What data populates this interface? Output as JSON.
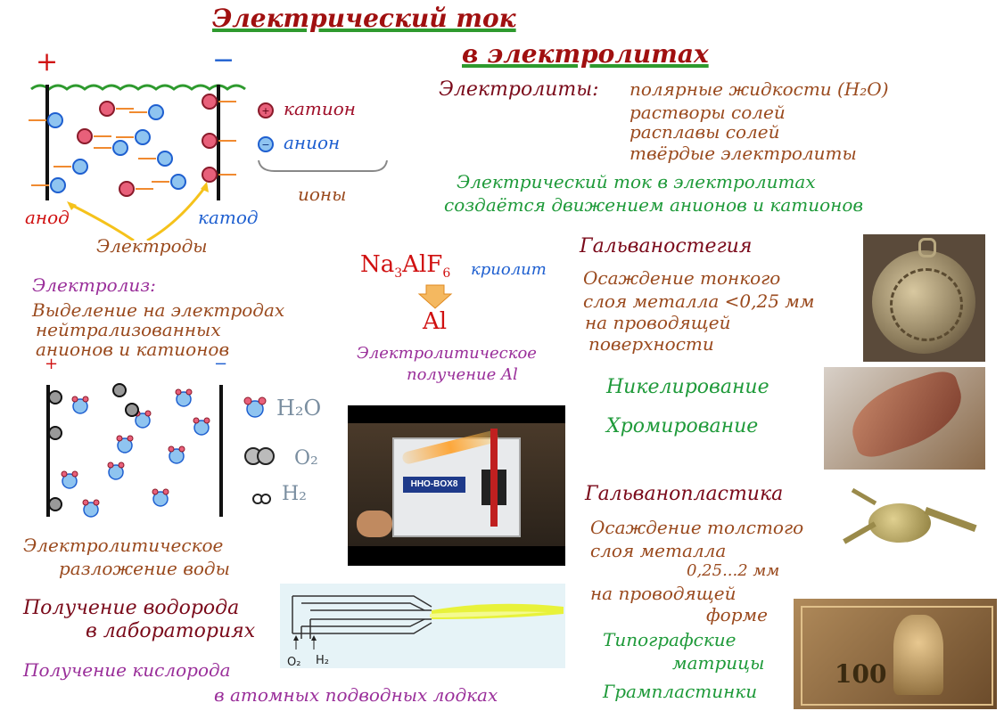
{
  "title": {
    "line1": "Электрический ток",
    "line2": "в электролитах"
  },
  "cell": {
    "plus": "+",
    "minus": "−",
    "anode": "анод",
    "cathode": "катод",
    "electrodes": "Электроды"
  },
  "legend": {
    "cation": "катион",
    "anion": "анион",
    "ions": "ионы",
    "cation_sign": "+",
    "anion_sign": "−"
  },
  "electrolytes": {
    "label": "Электролиты:",
    "items": [
      "полярные жидкости (H₂O)",
      "растворы солей",
      "расплавы солей",
      "твёрдые электролиты"
    ]
  },
  "current_statement": {
    "line1": "Электрический ток в электролитах",
    "line2": "создаётся движением анионов и катионов"
  },
  "electrolysis": {
    "title": "Электролиз:",
    "line1": "Выделение на электродах",
    "line2": "нейтрализованных",
    "line3": "анионов и катионов"
  },
  "aluminium": {
    "formula_na": "Na",
    "sub3": "3",
    "formula_alf": "AlF",
    "sub6": "6",
    "cryolite": "криолит",
    "product": "Al",
    "caption1": "Электролитическое",
    "caption2": "получение Al"
  },
  "water_legend": {
    "h2o": "H₂O",
    "o2": "O₂",
    "h2": "H₂"
  },
  "water_decomp": {
    "line1": "Электролитическое",
    "line2": "разложение воды"
  },
  "hydrogen": {
    "line1": "Получение водорода",
    "line2": "в лабораториях"
  },
  "oxygen": {
    "line1": "Получение кислорода",
    "line2": "в атомных подводных лодках"
  },
  "device": {
    "brand": "HHO-BOX8"
  },
  "torch": {
    "o2": "O₂",
    "h2": "H₂"
  },
  "galvanostegy": {
    "title": "Гальваностегия",
    "line1": "Осаждение тонкого",
    "line2": "слоя металла <0,25 мм",
    "line3": "на проводящей",
    "line4": "поверхности",
    "nickel": "Никелирование",
    "chrome": "Хромирование"
  },
  "galvanoplasty": {
    "title": "Гальванопластика",
    "line1": "Осаждение толстого",
    "line2": "слоя металла",
    "line3": "0,25...2 мм",
    "line4": "на проводящей",
    "line5": "форме",
    "typo1": "Типографские",
    "typo2": "матрицы",
    "records": "Грампластинки"
  },
  "banknote": {
    "value": "100"
  },
  "colors": {
    "title": "#a01010",
    "accent_green": "#1f9a3a",
    "cation": "#a0102a",
    "anion": "#1e5fd0"
  }
}
